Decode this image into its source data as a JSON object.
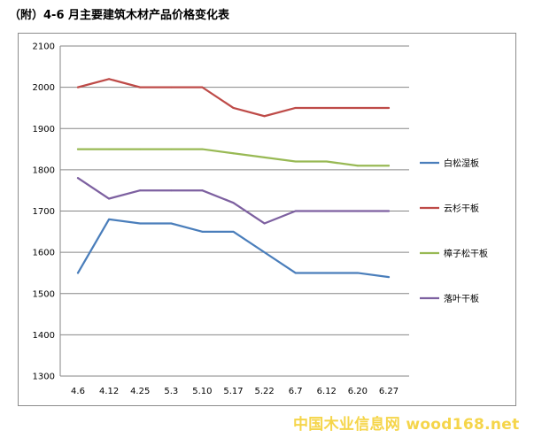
{
  "page": {
    "title": "（附）4-6 月主要建筑木材产品价格变化表",
    "watermark": "中国木业信息网 wood168.net"
  },
  "chart_data": {
    "type": "line",
    "title": "",
    "xlabel": "",
    "ylabel": "",
    "categories": [
      "4.6",
      "4.12",
      "4.25",
      "5.3",
      "5.10",
      "5.17",
      "5.22",
      "6.7",
      "6.12",
      "6.20",
      "6.27"
    ],
    "ylim": [
      1300,
      2100
    ],
    "yticks": [
      1300,
      1400,
      1500,
      1600,
      1700,
      1800,
      1900,
      2000,
      2100
    ],
    "grid": "horizontal",
    "legend_position": "right",
    "series": [
      {
        "name": "白松湿板",
        "color": "#4a7ebb",
        "values": [
          1550,
          1680,
          1670,
          1670,
          1650,
          1650,
          1600,
          1550,
          1550,
          1550,
          1540
        ]
      },
      {
        "name": "云杉干板",
        "color": "#be4b48",
        "values": [
          2000,
          2020,
          2000,
          2000,
          2000,
          1950,
          1930,
          1950,
          1950,
          1950,
          1950
        ]
      },
      {
        "name": "樟子松干板",
        "color": "#98b954",
        "values": [
          1850,
          1850,
          1850,
          1850,
          1850,
          1840,
          1830,
          1820,
          1820,
          1810,
          1810
        ]
      },
      {
        "name": "落叶干板",
        "color": "#7d60a0",
        "values": [
          1780,
          1730,
          1750,
          1750,
          1750,
          1720,
          1670,
          1700,
          1700,
          1700,
          1700
        ]
      }
    ]
  }
}
